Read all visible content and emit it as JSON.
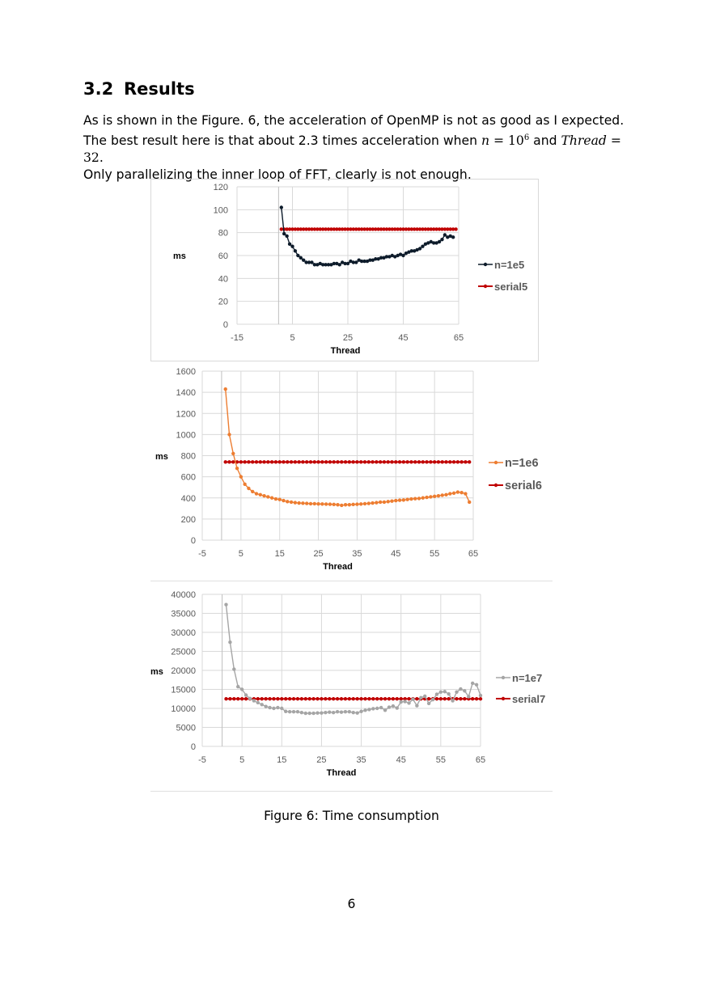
{
  "section": {
    "number": "3.2",
    "title": "Results"
  },
  "paragraph": {
    "text1": "As is shown in the Figure. 6, the acceleration of OpenMP is not as good as I expected.",
    "text2a": "The best result here is that about 2.3 times acceleration when ",
    "n_var": "n",
    "eq1": " = 10",
    "exp": "6",
    "and": " and ",
    "thread_var": "Thread",
    "eq2": " = 32.",
    "text3": "Only parallelizing the inner loop of FFT, clearly is not enough."
  },
  "caption": "Figure 6: Time consumption",
  "page_number": "6",
  "colors": {
    "series_n1e5": "#0d1b2a",
    "series_n1e6": "#ed7d31",
    "series_n1e7": "#a5a5a5",
    "serial": "#c00000",
    "grid": "#d9d9d9"
  },
  "chart_data": [
    {
      "type": "line",
      "xlabel": "Thread",
      "ylabel": "ms",
      "xlim": [
        -15,
        65
      ],
      "xticks": [
        "-15",
        "5",
        "25",
        "45",
        "65"
      ],
      "ylim": [
        0,
        120
      ],
      "yticks": [
        "0",
        "20",
        "40",
        "60",
        "80",
        "100",
        "120"
      ],
      "grid": true,
      "legend": "right",
      "series": [
        {
          "name": "n=1e5",
          "x_start": 1,
          "values": [
            102,
            79,
            77,
            70,
            68,
            64,
            60,
            58,
            56,
            54,
            54,
            54,
            52,
            52,
            53,
            52,
            52,
            52,
            52,
            53,
            53,
            52,
            54,
            53,
            53,
            55,
            54,
            54,
            56,
            55,
            55,
            55,
            56,
            56,
            57,
            57,
            58,
            58,
            59,
            59,
            60,
            59,
            60,
            61,
            60,
            62,
            63,
            64,
            64,
            65,
            66,
            68,
            70,
            71,
            72,
            71,
            71,
            72,
            74,
            78,
            76,
            77,
            76
          ]
        },
        {
          "name": "serial5",
          "x_start": 1,
          "constant": 83,
          "count": 64
        }
      ]
    },
    {
      "type": "line",
      "xlabel": "Thread",
      "ylabel": "ms",
      "xlim": [
        -5,
        65
      ],
      "xticks": [
        "-5",
        "5",
        "15",
        "25",
        "35",
        "45",
        "55",
        "65"
      ],
      "ylim": [
        0,
        1600
      ],
      "yticks": [
        "0",
        "200",
        "400",
        "600",
        "800",
        "1000",
        "1200",
        "1400",
        "1600"
      ],
      "grid": true,
      "legend": "right",
      "series": [
        {
          "name": "n=1e6",
          "x_start": 1,
          "values": [
            1430,
            1000,
            820,
            680,
            600,
            530,
            490,
            460,
            440,
            430,
            420,
            410,
            400,
            390,
            385,
            375,
            365,
            360,
            355,
            352,
            350,
            348,
            345,
            345,
            343,
            342,
            341,
            340,
            338,
            335,
            330,
            335,
            335,
            338,
            340,
            342,
            345,
            348,
            352,
            355,
            360,
            360,
            365,
            370,
            375,
            378,
            380,
            385,
            390,
            393,
            395,
            400,
            405,
            410,
            415,
            420,
            425,
            430,
            440,
            445,
            455,
            450,
            440,
            360
          ]
        },
        {
          "name": "serial6",
          "x_start": 1,
          "constant": 740,
          "count": 64
        }
      ]
    },
    {
      "type": "line",
      "xlabel": "Thread",
      "ylabel": "ms",
      "xlim": [
        -5,
        65
      ],
      "xticks": [
        "-5",
        "5",
        "15",
        "25",
        "35",
        "45",
        "55",
        "65"
      ],
      "ylim": [
        0,
        40000
      ],
      "yticks": [
        "0",
        "5000",
        "10000",
        "15000",
        "20000",
        "25000",
        "30000",
        "35000",
        "40000"
      ],
      "grid": true,
      "legend": "right",
      "series": [
        {
          "name": "n=1e7",
          "x_start": 1,
          "values": [
            37300,
            27400,
            20300,
            15700,
            15000,
            13500,
            12600,
            12000,
            11500,
            11000,
            10500,
            10200,
            10000,
            10200,
            10000,
            9200,
            9100,
            9100,
            9100,
            8900,
            8700,
            8700,
            8700,
            8800,
            8800,
            8900,
            9000,
            8900,
            9100,
            9000,
            9100,
            9100,
            8900,
            8800,
            9200,
            9500,
            9700,
            9900,
            10000,
            10200,
            9500,
            10300,
            10600,
            10100,
            11700,
            11800,
            11400,
            12400,
            10700,
            12800,
            13200,
            11300,
            12300,
            13700,
            14300,
            14400,
            13800,
            12000,
            14300,
            15100,
            14600,
            13100,
            16600,
            16200,
            13400
          ]
        },
        {
          "name": "serial7",
          "x_start": 1,
          "constant": 12500,
          "count": 65
        }
      ]
    }
  ]
}
